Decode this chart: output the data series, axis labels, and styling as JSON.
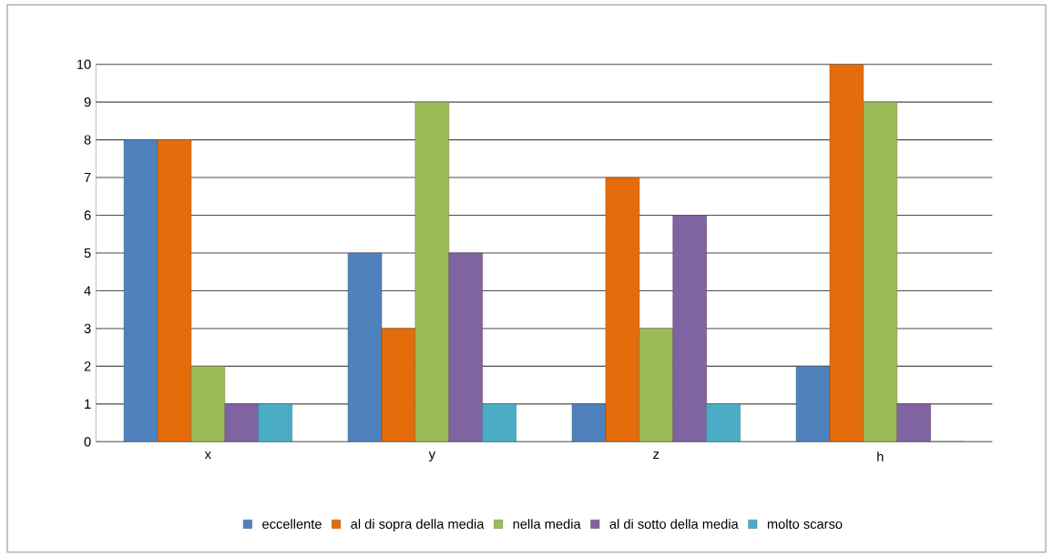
{
  "chart_data": {
    "type": "bar",
    "categories": [
      "x",
      "y",
      "z",
      "h"
    ],
    "series": [
      {
        "name": "eccellente",
        "color": "#4f81bd",
        "values": [
          8,
          5,
          1,
          2
        ]
      },
      {
        "name": "al di sopra della media",
        "color": "#e46c0a",
        "values": [
          8,
          3,
          7,
          10
        ]
      },
      {
        "name": "nella media",
        "color": "#9bbb59",
        "values": [
          2,
          9,
          3,
          9
        ]
      },
      {
        "name": "al di sotto della media",
        "color": "#8064a2",
        "values": [
          1,
          5,
          6,
          1
        ]
      },
      {
        "name": "molto scarso",
        "color": "#4bacc6",
        "values": [
          1,
          1,
          1,
          0
        ]
      }
    ],
    "ylim": [
      0,
      10
    ],
    "yticks": [
      0,
      1,
      2,
      3,
      4,
      5,
      6,
      7,
      8,
      9,
      10
    ],
    "grid": "y",
    "legend": "bottom"
  }
}
